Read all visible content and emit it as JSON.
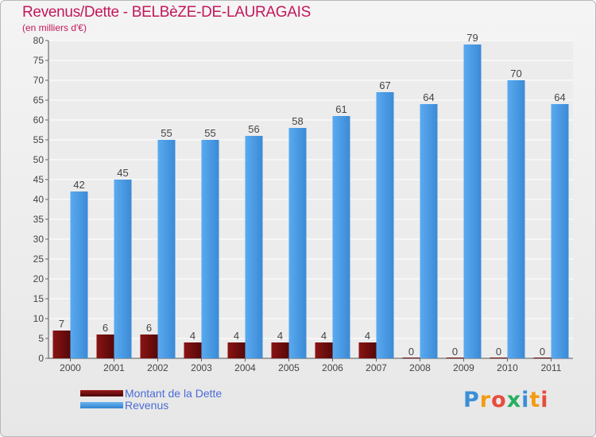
{
  "header": {
    "title": "Revenus/Dette - BELBèZE-DE-LAURAGAIS",
    "subtitle": "(en milliers d'€)"
  },
  "logo": {
    "text": "Proxiti"
  },
  "colors": {
    "dette": "#6b0c0c",
    "revenus": "#4d9fe6",
    "title": "#c2185b",
    "legend_text": "#4a6cd6"
  },
  "chart_data": {
    "type": "bar",
    "title": "Revenus/Dette - BELBèZE-DE-LAURAGAIS",
    "subtitle": "(en milliers d'€)",
    "categories": [
      "2000",
      "2001",
      "2002",
      "2003",
      "2004",
      "2005",
      "2006",
      "2007",
      "2008",
      "2009",
      "2010",
      "2011"
    ],
    "series": [
      {
        "name": "Montant de la Dette",
        "values": [
          7,
          6,
          6,
          4,
          4,
          4,
          4,
          4,
          0,
          0,
          0,
          0
        ]
      },
      {
        "name": "Revenus",
        "values": [
          42,
          45,
          55,
          55,
          56,
          58,
          61,
          67,
          64,
          79,
          70,
          64
        ]
      }
    ],
    "ylim": [
      0,
      80
    ],
    "yticks": [
      0,
      5,
      10,
      15,
      20,
      25,
      30,
      35,
      40,
      45,
      50,
      55,
      60,
      65,
      70,
      75,
      80
    ],
    "grid": true,
    "legend_position": "bottom-left"
  }
}
